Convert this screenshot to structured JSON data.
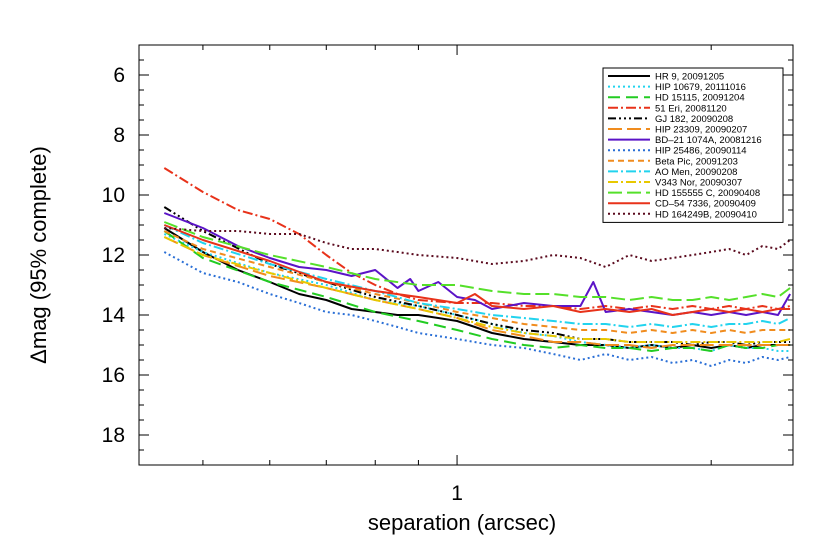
{
  "chart_data": {
    "type": "line",
    "title": "",
    "xlabel": "separation (arcsec)",
    "ylabel": "Δmag (95% complete)",
    "xscale": "log",
    "xlim": [
      0.42,
      2.5
    ],
    "ylim": [
      19,
      5
    ],
    "y_inverted": true,
    "xticks": [
      {
        "value": 1,
        "label": "1"
      }
    ],
    "yticks": [
      {
        "value": 6,
        "label": "6"
      },
      {
        "value": 8,
        "label": "8"
      },
      {
        "value": 10,
        "label": "10"
      },
      {
        "value": 12,
        "label": "12"
      },
      {
        "value": 14,
        "label": "14"
      },
      {
        "value": 16,
        "label": "16"
      },
      {
        "value": 18,
        "label": "18"
      }
    ],
    "x_minor_ticks": [
      0.5,
      0.6,
      0.7,
      0.8,
      0.9,
      2
    ],
    "y_minor_step": 0.5,
    "grid": false,
    "legend_position": "top-right",
    "series": [
      {
        "name": "HR 9, 20091205",
        "color": "#000000",
        "dash": "solid",
        "x": [
          0.45,
          0.5,
          0.55,
          0.6,
          0.65,
          0.7,
          0.75,
          0.8,
          0.85,
          0.9,
          0.95,
          1.0,
          1.05,
          1.1,
          1.2,
          1.3,
          1.4,
          1.5,
          1.6,
          1.7,
          1.8,
          1.9,
          2.0,
          2.1,
          2.2,
          2.3,
          2.4,
          2.48
        ],
        "y": [
          11.1,
          11.9,
          12.5,
          12.9,
          13.3,
          13.5,
          13.8,
          13.9,
          14.0,
          14.0,
          14.1,
          14.2,
          14.4,
          14.6,
          14.8,
          14.9,
          15.0,
          15.0,
          15.1,
          15.0,
          15.1,
          15.0,
          15.1,
          15.0,
          15.1,
          15.0,
          15.0,
          15.0
        ]
      },
      {
        "name": "HIP 10679, 20111016",
        "color": "#22d3ee",
        "dash": "2,3",
        "x": [
          0.45,
          0.5,
          0.6,
          0.7,
          0.8,
          0.9,
          1.0,
          1.1,
          1.2,
          1.3,
          1.4,
          1.5,
          1.6,
          1.7,
          1.8,
          1.9,
          2.0,
          2.1,
          2.2,
          2.3,
          2.4,
          2.48
        ],
        "y": [
          11.3,
          11.9,
          12.6,
          13.0,
          13.5,
          13.7,
          14.0,
          14.3,
          14.6,
          14.7,
          14.9,
          15.0,
          15.1,
          15.0,
          15.1,
          15.1,
          15.2,
          15.0,
          15.1,
          15.1,
          15.2,
          15.2
        ]
      },
      {
        "name": "HD 15115, 20091204",
        "color": "#22cc22",
        "dash": "12,6",
        "x": [
          0.45,
          0.5,
          0.6,
          0.7,
          0.8,
          0.9,
          1.0,
          1.1,
          1.2,
          1.3,
          1.4,
          1.5,
          1.6,
          1.7,
          1.8,
          1.9,
          2.0,
          2.1,
          2.2,
          2.3,
          2.4,
          2.48
        ],
        "y": [
          11.2,
          12.1,
          12.9,
          13.4,
          13.9,
          14.2,
          14.5,
          14.8,
          15.0,
          15.1,
          15.0,
          15.1,
          15.1,
          15.2,
          15.1,
          15.1,
          15.2,
          15.0,
          15.1,
          15.1,
          15.0,
          15.0
        ]
      },
      {
        "name": "51 Eri, 20081120",
        "color": "#e8321a",
        "dash": "10,3,2,3",
        "x": [
          0.45,
          0.5,
          0.55,
          0.6,
          0.65,
          0.7,
          0.75,
          0.8,
          0.85,
          0.9,
          1.0,
          1.1,
          1.2,
          1.3,
          1.4,
          1.5,
          1.6,
          1.7,
          1.8,
          1.9,
          2.0,
          2.1,
          2.2,
          2.3,
          2.4,
          2.48
        ],
        "y": [
          9.1,
          9.9,
          10.5,
          10.8,
          11.3,
          12.0,
          12.6,
          13.0,
          13.3,
          13.5,
          13.6,
          13.6,
          13.7,
          13.7,
          13.8,
          13.7,
          13.8,
          13.7,
          13.8,
          13.7,
          13.8,
          13.7,
          13.8,
          13.7,
          13.8,
          13.7
        ]
      },
      {
        "name": "GJ 182, 20090208",
        "color": "#000000",
        "dash": "8,3,2,3,2,3,2,3",
        "x": [
          0.45,
          0.5,
          0.6,
          0.7,
          0.8,
          0.9,
          1.0,
          1.1,
          1.2,
          1.3,
          1.4,
          1.5,
          1.6,
          1.7,
          1.8,
          1.9,
          2.0,
          2.1,
          2.2,
          2.3,
          2.4,
          2.48
        ],
        "y": [
          10.4,
          11.2,
          12.3,
          12.9,
          13.4,
          13.7,
          14.0,
          14.3,
          14.5,
          14.6,
          14.8,
          14.8,
          14.9,
          14.9,
          14.9,
          15.0,
          14.9,
          14.9,
          15.0,
          14.9,
          14.9,
          14.9
        ]
      },
      {
        "name": "HIP 23309, 20090207",
        "color": "#f08c1e",
        "dash": "14,5",
        "x": [
          0.45,
          0.5,
          0.6,
          0.7,
          0.8,
          0.9,
          1.0,
          1.1,
          1.2,
          1.3,
          1.4,
          1.5,
          1.6,
          1.7,
          1.8,
          1.9,
          2.0,
          2.1,
          2.2,
          2.3,
          2.4,
          2.48
        ],
        "y": [
          11.4,
          12.0,
          12.7,
          13.1,
          13.5,
          13.8,
          14.1,
          14.5,
          14.7,
          14.9,
          14.9,
          15.0,
          15.0,
          15.1,
          15.0,
          15.0,
          15.0,
          15.0,
          15.0,
          15.0,
          15.0,
          15.0
        ]
      },
      {
        "name": "BD–21 1074A, 20081216",
        "color": "#5b14c7",
        "dash": "solid",
        "x": [
          0.45,
          0.5,
          0.55,
          0.6,
          0.65,
          0.7,
          0.75,
          0.8,
          0.85,
          0.88,
          0.9,
          0.95,
          1.0,
          1.05,
          1.1,
          1.2,
          1.3,
          1.4,
          1.45,
          1.5,
          1.6,
          1.7,
          1.8,
          1.9,
          2.0,
          2.1,
          2.2,
          2.3,
          2.4,
          2.48
        ],
        "y": [
          10.6,
          11.1,
          11.7,
          12.1,
          12.4,
          12.5,
          12.7,
          12.5,
          13.1,
          12.8,
          13.2,
          12.9,
          13.4,
          13.5,
          13.8,
          13.6,
          13.7,
          13.7,
          12.9,
          13.9,
          13.8,
          13.9,
          14.0,
          13.9,
          14.0,
          13.9,
          14.0,
          13.9,
          14.0,
          13.3
        ]
      },
      {
        "name": "HIP 25486, 20090114",
        "color": "#2a6fd6",
        "dash": "2,3",
        "x": [
          0.45,
          0.5,
          0.55,
          0.6,
          0.65,
          0.7,
          0.75,
          0.8,
          0.85,
          0.9,
          1.0,
          1.1,
          1.2,
          1.3,
          1.4,
          1.5,
          1.6,
          1.7,
          1.8,
          1.9,
          2.0,
          2.1,
          2.2,
          2.3,
          2.4,
          2.48
        ],
        "y": [
          11.9,
          12.6,
          12.9,
          13.3,
          13.6,
          13.9,
          14.0,
          14.2,
          14.4,
          14.6,
          14.8,
          15.0,
          15.1,
          15.3,
          15.5,
          15.3,
          15.5,
          15.4,
          15.6,
          15.5,
          15.7,
          15.5,
          15.6,
          15.4,
          15.5,
          15.4
        ]
      },
      {
        "name": "Beta Pic, 20091203",
        "color": "#f08c1e",
        "dash": "6,4",
        "x": [
          0.45,
          0.5,
          0.6,
          0.7,
          0.8,
          0.9,
          1.0,
          1.1,
          1.2,
          1.3,
          1.4,
          1.5,
          1.6,
          1.7,
          1.8,
          1.9,
          2.0,
          2.1,
          2.2,
          2.3,
          2.4,
          2.48
        ],
        "y": [
          11.2,
          11.8,
          12.4,
          12.9,
          13.3,
          13.6,
          13.9,
          14.1,
          14.3,
          14.4,
          14.5,
          14.5,
          14.6,
          14.5,
          14.6,
          14.5,
          14.6,
          14.5,
          14.6,
          14.5,
          14.5,
          14.5
        ]
      },
      {
        "name": "AO Men, 20090208",
        "color": "#22d3ee",
        "dash": "10,3,2,3",
        "x": [
          0.45,
          0.5,
          0.6,
          0.7,
          0.8,
          0.9,
          1.0,
          1.1,
          1.2,
          1.3,
          1.4,
          1.5,
          1.6,
          1.7,
          1.8,
          1.9,
          2.0,
          2.1,
          2.2,
          2.3,
          2.4,
          2.48
        ],
        "y": [
          11.0,
          11.6,
          12.3,
          12.8,
          13.2,
          13.6,
          13.8,
          14.0,
          14.1,
          14.2,
          14.3,
          14.3,
          14.4,
          14.3,
          14.4,
          14.3,
          14.4,
          14.3,
          14.3,
          14.2,
          14.3,
          14.1
        ]
      },
      {
        "name": "V343 Nor, 20090307",
        "color": "#e8c800",
        "dash": "10,3,2,3",
        "x": [
          0.45,
          0.5,
          0.6,
          0.7,
          0.8,
          0.9,
          1.0,
          1.1,
          1.2,
          1.3,
          1.4,
          1.5,
          1.6,
          1.7,
          1.8,
          1.9,
          2.0,
          2.1,
          2.2,
          2.3,
          2.4,
          2.48
        ],
        "y": [
          11.4,
          12.0,
          12.6,
          13.1,
          13.5,
          13.8,
          14.1,
          14.4,
          14.6,
          14.7,
          14.8,
          14.8,
          14.9,
          14.9,
          14.9,
          14.9,
          14.9,
          14.9,
          14.9,
          14.9,
          14.9,
          14.8
        ]
      },
      {
        "name": "HD 155555 C, 20090408",
        "color": "#55e02a",
        "dash": "14,5",
        "x": [
          0.45,
          0.5,
          0.6,
          0.7,
          0.8,
          0.9,
          1.0,
          1.1,
          1.2,
          1.3,
          1.4,
          1.5,
          1.6,
          1.7,
          1.8,
          1.9,
          2.0,
          2.1,
          2.2,
          2.3,
          2.4,
          2.48
        ],
        "y": [
          10.9,
          11.4,
          12.0,
          12.4,
          12.8,
          13.0,
          13.0,
          13.2,
          13.3,
          13.3,
          13.4,
          13.4,
          13.5,
          13.4,
          13.5,
          13.5,
          13.4,
          13.5,
          13.4,
          13.3,
          13.4,
          13.1
        ]
      },
      {
        "name": "CD–54 7336, 20090409",
        "color": "#e8321a",
        "dash": "solid",
        "x": [
          0.45,
          0.5,
          0.6,
          0.7,
          0.8,
          0.9,
          1.0,
          1.05,
          1.1,
          1.2,
          1.3,
          1.4,
          1.5,
          1.6,
          1.7,
          1.8,
          1.9,
          2.0,
          2.1,
          2.2,
          2.3,
          2.4,
          2.48
        ],
        "y": [
          11.0,
          11.5,
          12.2,
          12.9,
          13.2,
          13.4,
          13.6,
          13.3,
          13.7,
          13.8,
          13.7,
          13.9,
          13.8,
          13.9,
          13.8,
          14.0,
          13.9,
          13.8,
          13.9,
          13.8,
          13.9,
          13.8,
          13.8
        ]
      },
      {
        "name": "HD 164249B, 20090410",
        "color": "#5a0a1e",
        "dash": "2,3",
        "x": [
          0.45,
          0.5,
          0.55,
          0.6,
          0.65,
          0.7,
          0.75,
          0.8,
          0.85,
          0.9,
          1.0,
          1.1,
          1.2,
          1.3,
          1.4,
          1.5,
          1.6,
          1.7,
          1.8,
          1.9,
          2.0,
          2.1,
          2.2,
          2.3,
          2.4,
          2.48
        ],
        "y": [
          11.1,
          11.2,
          11.2,
          11.3,
          11.3,
          11.6,
          11.8,
          11.8,
          11.9,
          12.0,
          12.1,
          12.3,
          12.2,
          12.0,
          12.1,
          12.4,
          12.0,
          12.2,
          12.1,
          12.0,
          11.9,
          11.8,
          12.0,
          11.7,
          11.8,
          11.5
        ]
      }
    ]
  }
}
